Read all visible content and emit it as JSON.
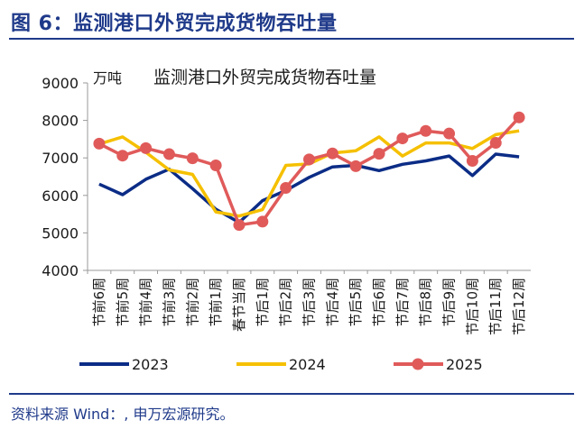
{
  "figure": {
    "title": "图 6：监测港口外贸完成货物吞吐量",
    "source": "资料来源 Wind：, 申万宏源研究。"
  },
  "chart_data": {
    "type": "line",
    "title": "监测港口外贸完成货物吞吐量",
    "unit": "万吨",
    "ylim": [
      4000,
      9000
    ],
    "yticks": [
      4000,
      5000,
      6000,
      7000,
      8000,
      9000
    ],
    "grid": false,
    "legend_position": "bottom",
    "categories": [
      "节前6周",
      "节前5周",
      "节前4周",
      "节前3周",
      "节前2周",
      "节前1周",
      "春节当周",
      "节后1周",
      "节后2周",
      "节后3周",
      "节后4周",
      "节后5周",
      "节后6周",
      "节后7周",
      "节后8周",
      "节后9周",
      "节后10周",
      "节后11周",
      "节后12周"
    ],
    "series": [
      {
        "name": "2023",
        "color": "#0b2c86",
        "marker": false,
        "values": [
          6300,
          6020,
          6430,
          6700,
          6180,
          5630,
          5280,
          5860,
          6130,
          6480,
          6760,
          6800,
          6660,
          6830,
          6920,
          7050,
          6530,
          7100,
          7030
        ]
      },
      {
        "name": "2024",
        "color": "#f5c000",
        "marker": false,
        "values": [
          7370,
          7560,
          7150,
          6680,
          6560,
          5560,
          5450,
          5620,
          6800,
          6840,
          7130,
          7190,
          7560,
          7050,
          7400,
          7400,
          7250,
          7620,
          7720
        ]
      },
      {
        "name": "2025",
        "color": "#e05a5a",
        "marker": true,
        "values": [
          7380,
          7060,
          7260,
          7100,
          6990,
          6800,
          5210,
          5300,
          6200,
          6960,
          7120,
          6780,
          7110,
          7520,
          7720,
          7650,
          6920,
          7400,
          8080
        ]
      }
    ]
  }
}
